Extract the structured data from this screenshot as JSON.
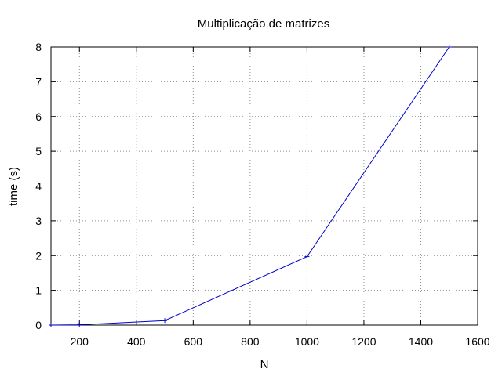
{
  "chart_data": {
    "type": "line",
    "title": "Multiplicação de matrizes",
    "xlabel": "N",
    "ylabel": "time (s)",
    "xlim": [
      100,
      1600
    ],
    "ylim": [
      0,
      8
    ],
    "x_ticks": [
      200,
      400,
      600,
      800,
      1000,
      1200,
      1400,
      1600
    ],
    "y_ticks": [
      0,
      1,
      2,
      3,
      4,
      5,
      6,
      7,
      8
    ],
    "grid": true,
    "legend": "none",
    "series": [
      {
        "color": "#0000cc",
        "marker": "plus",
        "x": [
          100,
          200,
          500,
          1000,
          1500
        ],
        "y": [
          0.0,
          0.01,
          0.13,
          1.97,
          8.0
        ]
      }
    ]
  }
}
